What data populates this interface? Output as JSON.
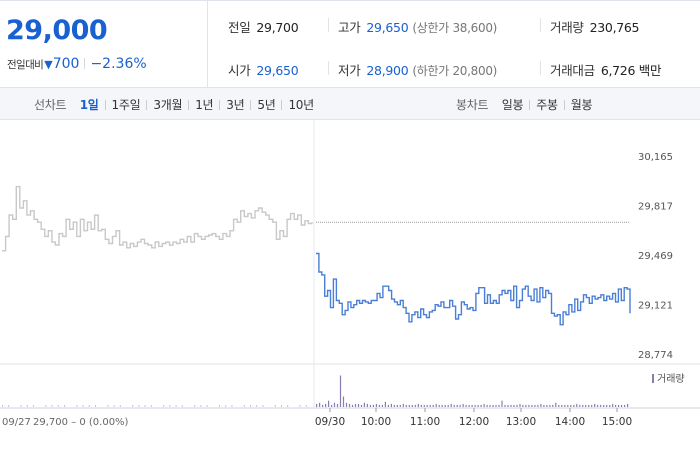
{
  "summary": {
    "price": "29,000",
    "change_label": "전일대비",
    "change_icon": "down-triangle-icon",
    "change_symbol": "▼",
    "change_amount": "700",
    "change_percent": "−2.36%",
    "down_color": "#1960d1",
    "stats": {
      "prev_close": {
        "label": "전일",
        "value": "29,700"
      },
      "high": {
        "label": "고가",
        "value": "29,650",
        "note": "(상한가 38,600)"
      },
      "volume": {
        "label": "거래량",
        "value": "230,765"
      },
      "open": {
        "label": "시가",
        "value": "29,650"
      },
      "low": {
        "label": "저가",
        "value": "28,900",
        "note": "(하한가 20,800)"
      },
      "amount": {
        "label": "거래대금",
        "value": "6,726 백만"
      }
    }
  },
  "tabs": {
    "line_label": "선차트",
    "line_tabs": [
      "1일",
      "1주일",
      "3개월",
      "1년",
      "3년",
      "5년",
      "10년"
    ],
    "line_active": "1일",
    "candle_label": "봉차트",
    "candle_tabs": [
      "일봉",
      "주봉",
      "월봉"
    ]
  },
  "chart_data": {
    "type": "line",
    "y_ticks": [
      "30,165",
      "29,817",
      "29,469",
      "29,121",
      "28,774"
    ],
    "ylim": [
      28774,
      30165
    ],
    "reference_price": 29700,
    "x_tick_labels": [
      "09/30",
      "10:00",
      "11:00",
      "12:00",
      "13:00",
      "14:00",
      "15:00"
    ],
    "prev_day_label": "09/27",
    "prev_day_summary": "29,700 – 0 (0.00%)",
    "volume_legend": "거래량",
    "colors": {
      "today_line": "#4a7fd6",
      "today_fill": "#e4edfa",
      "prev_line": "#c8c8c8",
      "volume": "#8c7bb0",
      "volume_light": "#c9c0dd"
    },
    "series": [
      {
        "period": "09/27",
        "values": [
          29500,
          29600,
          29750,
          29720,
          29950,
          29800,
          29850,
          29750,
          29780,
          29720,
          29700,
          29650,
          29600,
          29640,
          29560,
          29540,
          29620,
          29600,
          29720,
          29650,
          29700,
          29600,
          29720,
          29640,
          29700,
          29650,
          29750,
          29640,
          29650,
          29580,
          29550,
          29600,
          29640,
          29540,
          29560,
          29520,
          29550,
          29530,
          29560,
          29580,
          29550,
          29540,
          29520,
          29560,
          29530,
          29550,
          29560,
          29540,
          29560,
          29550,
          29580,
          29560,
          29600,
          29560,
          29620,
          29600,
          29580,
          29600,
          29610,
          29620,
          29600,
          29580,
          29620,
          29600,
          29640,
          29720,
          29700,
          29780,
          29740,
          29760,
          29730,
          29780,
          29800,
          29770,
          29750,
          29720,
          29700,
          29580,
          29640,
          29600,
          29720,
          29760,
          29720,
          29750,
          29680,
          29710,
          29690,
          29700
        ]
      },
      {
        "period": "09/30",
        "values": [
          29480,
          29350,
          29330,
          29180,
          29220,
          29100,
          29300,
          29150,
          29130,
          29050,
          29080,
          29140,
          29100,
          29120,
          29150,
          29130,
          29150,
          29140,
          29130,
          29150,
          29150,
          29200,
          29170,
          29250,
          29250,
          29220,
          29160,
          29140,
          29120,
          29150,
          29100,
          29060,
          29000,
          29050,
          29070,
          29030,
          29090,
          29050,
          29030,
          29070,
          29080,
          29120,
          29110,
          29140,
          29100,
          29100,
          29150,
          29110,
          29020,
          29050,
          29140,
          29120,
          29090,
          29100,
          29080,
          29200,
          29240,
          29240,
          29130,
          29190,
          29130,
          29150,
          29130,
          29190,
          29220,
          29200,
          29220,
          29150,
          29250,
          29100,
          29150,
          29230,
          29250,
          29180,
          29150,
          29230,
          29140,
          29240,
          29170,
          29220,
          29200,
          29060,
          29040,
          29050,
          28980,
          29070,
          29050,
          29120,
          29070,
          29160,
          29080,
          29140,
          29190,
          29170,
          29130,
          29180,
          29160,
          29170,
          29190,
          29150,
          29180,
          29160,
          29200,
          29140,
          29230,
          29150,
          29240,
          29230,
          29060
        ]
      }
    ],
    "volume": {
      "prev_day": [
        1,
        1,
        0,
        1,
        1,
        1,
        0,
        1,
        1,
        1,
        1,
        0,
        1,
        1,
        1,
        1,
        0,
        1,
        1,
        1,
        0,
        1,
        1,
        1,
        1,
        0,
        1,
        1,
        1,
        1,
        0,
        1,
        1,
        1,
        0,
        1,
        1,
        1,
        0,
        1,
        1,
        1,
        1,
        0,
        1,
        1,
        1,
        0,
        1,
        1
      ],
      "today": [
        3,
        4,
        2,
        3,
        6,
        2,
        4,
        3,
        30,
        10,
        4,
        3,
        2,
        3,
        3,
        2,
        4,
        3,
        2,
        2,
        3,
        2,
        2,
        5,
        2,
        3,
        2,
        2,
        2,
        3,
        2,
        2,
        2,
        2,
        3,
        2,
        2,
        2,
        2,
        2,
        3,
        2,
        2,
        2,
        2,
        3,
        2,
        2,
        2,
        3,
        2,
        2,
        2,
        2,
        2,
        2,
        3,
        2,
        2,
        2,
        2,
        2,
        6,
        2,
        2,
        2,
        2,
        2,
        3,
        2,
        2,
        2,
        2,
        2,
        2,
        3,
        2,
        2,
        2,
        2,
        4,
        2,
        2,
        2,
        2,
        2,
        2,
        3,
        2,
        2,
        2,
        2,
        2,
        3,
        2,
        2,
        2,
        2,
        2,
        3,
        2,
        2,
        2,
        2,
        3
      ]
    }
  }
}
